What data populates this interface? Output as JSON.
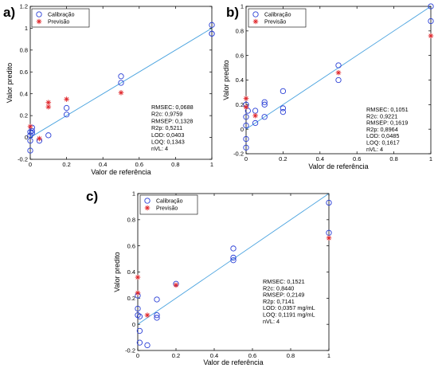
{
  "chart_data": [
    {
      "panel": "a)",
      "type": "scatter",
      "xlabel": "Valor de referência",
      "ylabel": "Valor predito",
      "xlim": [
        0,
        1
      ],
      "ylim": [
        -0.2,
        1.2
      ],
      "xticks": [
        "0",
        "0.2",
        "0.4",
        "0.6",
        "0.8",
        "1"
      ],
      "yticks": [
        "-0.2",
        "0",
        "0.2",
        "0.4",
        "0.6",
        "0.8",
        "1",
        "1.2"
      ],
      "grid": false,
      "legend_position": "top-left",
      "reference_line": {
        "x": [
          0,
          1
        ],
        "y": [
          0,
          1
        ],
        "color": "#4aa3df"
      },
      "series": [
        {
          "name": "Calibração",
          "marker": "circle",
          "color": "#2a3fd6",
          "points": [
            [
              0,
              0.02
            ],
            [
              0,
              -0.03
            ],
            [
              0,
              -0.12
            ],
            [
              0,
              0.05
            ],
            [
              0.01,
              0.06
            ],
            [
              0.01,
              0.09
            ],
            [
              0.01,
              0.04
            ],
            [
              0.05,
              -0.03
            ],
            [
              0.1,
              0.02
            ],
            [
              0.2,
              0.21
            ],
            [
              0.2,
              0.27
            ],
            [
              0.5,
              0.5
            ],
            [
              0.5,
              0.56
            ],
            [
              1,
              0.95
            ],
            [
              1,
              1.03
            ],
            [
              1,
              0.95
            ]
          ]
        },
        {
          "name": "Previsão",
          "marker": "star",
          "color": "#e0262b",
          "points": [
            [
              0,
              0.1
            ],
            [
              0.05,
              -0.01
            ],
            [
              0.1,
              0.28
            ],
            [
              0.1,
              0.32
            ],
            [
              0.2,
              0.35
            ],
            [
              0.5,
              0.41
            ]
          ]
        }
      ],
      "stats": [
        "RMSEC: 0,0688",
        "R2c: 0,9759",
        "RMSEP: 0,1328",
        "R2p: 0,5211",
        "LOD: 0,0403",
        "LOQ: 0,1343",
        "nVL: 4"
      ]
    },
    {
      "panel": "b)",
      "type": "scatter",
      "xlabel": "Valor de referência",
      "ylabel": "Valor predito",
      "xlim": [
        0,
        1
      ],
      "ylim": [
        -0.2,
        1
      ],
      "xticks": [
        "0",
        "0.2",
        "0.4",
        "0.6",
        "0.8",
        "1"
      ],
      "yticks": [
        "-0.2",
        "0",
        "0.2",
        "0.4",
        "0.6",
        "0.8",
        "1"
      ],
      "grid": false,
      "legend_position": "top-left",
      "reference_line": {
        "x": [
          0,
          1
        ],
        "y": [
          0,
          1
        ],
        "color": "#4aa3df"
      },
      "series": [
        {
          "name": "Calibração",
          "marker": "circle",
          "color": "#2a3fd6",
          "points": [
            [
              0,
              0.2
            ],
            [
              0,
              0.1
            ],
            [
              0,
              0.03
            ],
            [
              0,
              -0.08
            ],
            [
              0,
              -0.15
            ],
            [
              0.01,
              0.15
            ],
            [
              0.05,
              0.15
            ],
            [
              0.05,
              0.05
            ],
            [
              0.1,
              0.2
            ],
            [
              0.1,
              0.22
            ],
            [
              0.1,
              0.1
            ],
            [
              0.2,
              0.31
            ],
            [
              0.2,
              0.17
            ],
            [
              0.2,
              0.14
            ],
            [
              0.5,
              0.52
            ],
            [
              0.5,
              0.4
            ],
            [
              1,
              1.0
            ],
            [
              1,
              0.88
            ]
          ]
        },
        {
          "name": "Previsão",
          "marker": "star",
          "color": "#e0262b",
          "points": [
            [
              0,
              0.25
            ],
            [
              0,
              0.18
            ],
            [
              0.05,
              0.11
            ],
            [
              0.5,
              0.46
            ],
            [
              1,
              0.76
            ]
          ]
        }
      ],
      "stats": [
        "RMSEC: 0,1051",
        "R2c: 0,9221",
        "RMSEP: 0,1619",
        "R2p: 0,8964",
        "LOD: 0,0485",
        "LOQ: 0,1617",
        "nVL: 4"
      ]
    },
    {
      "panel": "c)",
      "type": "scatter",
      "xlabel": "Valor de referência",
      "ylabel": "Valor predito",
      "xlim": [
        0,
        1
      ],
      "ylim": [
        -0.2,
        1
      ],
      "xticks": [
        "0",
        "0.2",
        "0.4",
        "0.6",
        "0.8",
        "1"
      ],
      "yticks": [
        "-0.2",
        "0",
        "0.2",
        "0.4",
        "0.6",
        "0.8",
        "1"
      ],
      "grid": false,
      "legend_position": "top-left",
      "reference_line": {
        "x": [
          0,
          1
        ],
        "y": [
          0,
          1
        ],
        "color": "#4aa3df"
      },
      "series": [
        {
          "name": "Calibração",
          "marker": "circle",
          "color": "#2a3fd6",
          "points": [
            [
              0,
              0.22
            ],
            [
              0,
              0.12
            ],
            [
              0,
              0.07
            ],
            [
              0.01,
              0.06
            ],
            [
              0.01,
              -0.05
            ],
            [
              0.01,
              -0.14
            ],
            [
              0.05,
              -0.16
            ],
            [
              0.1,
              0.19
            ],
            [
              0.1,
              0.07
            ],
            [
              0.1,
              0.05
            ],
            [
              0.2,
              0.31
            ],
            [
              0.5,
              0.58
            ],
            [
              0.5,
              0.51
            ],
            [
              0.5,
              0.49
            ],
            [
              1,
              0.93
            ],
            [
              1,
              0.7
            ]
          ]
        },
        {
          "name": "Previsão",
          "marker": "star",
          "color": "#e0262b",
          "points": [
            [
              0,
              0.36
            ],
            [
              0,
              0.24
            ],
            [
              0.05,
              0.07
            ],
            [
              0.2,
              0.3
            ],
            [
              1,
              0.66
            ]
          ]
        }
      ],
      "stats": [
        "RMSEC: 0,1521",
        "R2c: 0,8440",
        "RMSEP: 0,2149",
        "R2p: 0,7141",
        "LOD: 0,0357 mg/mL",
        "LOQ: 0,1191 mg/mL",
        "nVL: 4"
      ]
    }
  ]
}
